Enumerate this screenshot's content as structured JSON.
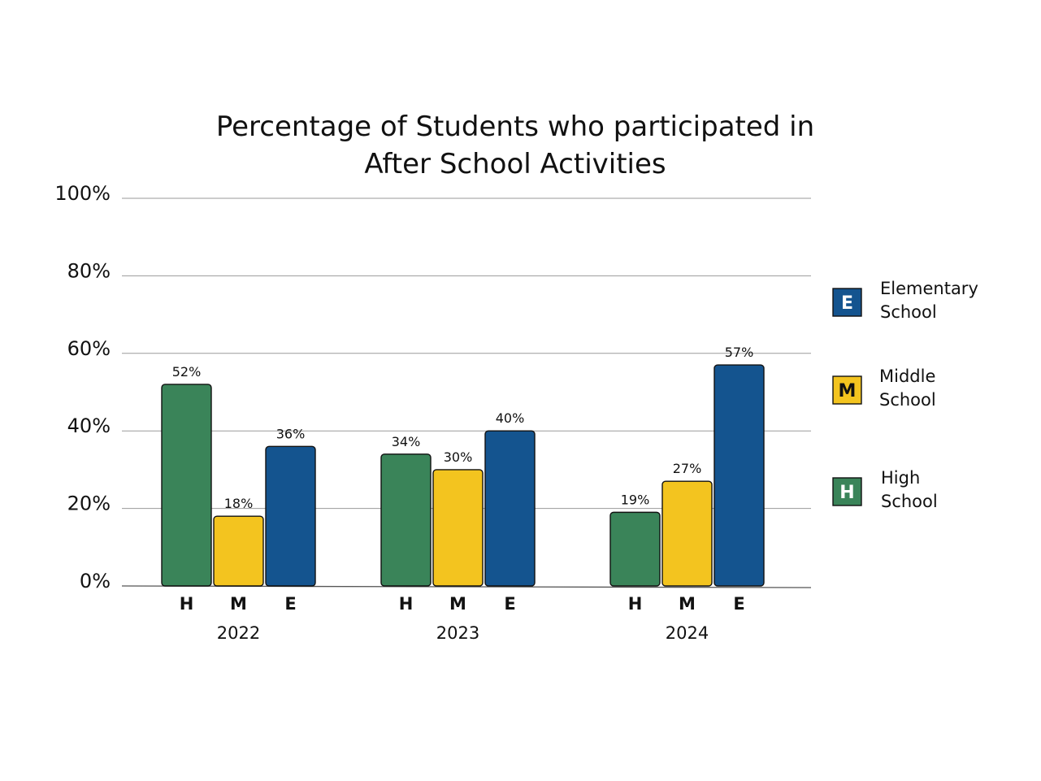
{
  "chart_data": {
    "type": "bar",
    "title_lines": [
      "Percentage  of  Students  who  participated  in",
      "After School Activities"
    ],
    "groups": [
      "2022",
      "2023",
      "2024"
    ],
    "category_labels": [
      "H",
      "M",
      "E"
    ],
    "series": [
      {
        "key": "H",
        "legend_letter": "H",
        "legend_lines": [
          "High",
          "School"
        ],
        "color": "#3a8459",
        "values": [
          52,
          34,
          19
        ],
        "labels": [
          "52%",
          "34%",
          "19%"
        ]
      },
      {
        "key": "M",
        "legend_letter": "M",
        "legend_lines": [
          "Middle",
          "School"
        ],
        "color": "#f3c41f",
        "values": [
          18,
          30,
          27
        ],
        "labels": [
          "18%",
          "30%",
          "27%"
        ]
      },
      {
        "key": "E",
        "legend_letter": "E",
        "legend_lines": [
          "Elementary",
          " School"
        ],
        "color": "#14548f",
        "values": [
          36,
          40,
          57
        ],
        "labels": [
          "36%",
          "40%",
          "57%"
        ]
      }
    ],
    "legend_order": [
      "E",
      "M",
      "H"
    ],
    "y_ticks": [
      {
        "value": 0,
        "label": "0%"
      },
      {
        "value": 20,
        "label": "20%"
      },
      {
        "value": 40,
        "label": "40%"
      },
      {
        "value": 60,
        "label": "60%"
      },
      {
        "value": 80,
        "label": "80%"
      },
      {
        "value": 100,
        "label": "100%"
      }
    ],
    "ylim": [
      0,
      100
    ],
    "grid": true,
    "legend_position": "right"
  }
}
